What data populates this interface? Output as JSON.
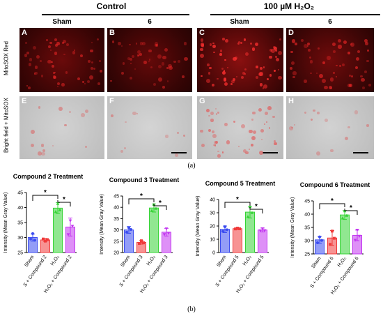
{
  "groups": {
    "control": "Control",
    "h2o2": "100 µM H₂O₂"
  },
  "columns": [
    "Sham",
    "6",
    "Sham",
    "6"
  ],
  "rows": {
    "mitosox": "MitoSOX Red",
    "bright": "Bright field + MitoSOX"
  },
  "panel_letters": [
    "A",
    "B",
    "C",
    "D",
    "E",
    "F",
    "G",
    "H"
  ],
  "captions": {
    "a": "(a)",
    "b": "(b)"
  },
  "colors": {
    "blue": "#3b4cf0",
    "red": "#f03a3a",
    "green": "#36d436",
    "purple": "#c235f0"
  },
  "chart_data": [
    {
      "type": "bar",
      "title": "Compound 2 Treatment",
      "ylabel": "Intensity (Mean Gray Value)",
      "ylim": [
        25,
        45
      ],
      "yticks": [
        25,
        30,
        35,
        40,
        45
      ],
      "categories": [
        "Sham",
        "S + Compound 2",
        "H₂O₂",
        "H₂O₂ + Compound 2"
      ],
      "values": [
        30,
        29.2,
        39.8,
        33.5
      ],
      "errors": [
        1.2,
        0.5,
        1.8,
        3.0
      ],
      "points": [
        [
          29.5,
          31.3,
          29.1
        ],
        [
          29.5,
          28.8,
          29.3
        ],
        [
          38.6,
          41.3,
          39.2
        ],
        [
          31.0,
          35.6,
          33.8
        ]
      ],
      "significance": [
        "*",
        "*"
      ]
    },
    {
      "type": "bar",
      "title": "Compound 3 Treatment",
      "ylabel": "Intensity (Mean Gray Value)",
      "ylim": [
        20,
        45
      ],
      "yticks": [
        20,
        25,
        30,
        35,
        40,
        45
      ],
      "categories": [
        "Sham",
        "S + Compound 3",
        "H₂O₂",
        "H₂O₂ + Compound 3"
      ],
      "values": [
        30,
        24.5,
        39.7,
        29
      ],
      "errors": [
        1.5,
        0.8,
        1.8,
        1.7
      ],
      "points": [
        [
          29.0,
          31.0,
          30.2
        ],
        [
          24.0,
          25.2,
          24.3
        ],
        [
          38.5,
          41.2,
          39.5
        ],
        [
          28.0,
          30.5,
          28.6
        ]
      ],
      "significance": [
        "*",
        "*"
      ]
    },
    {
      "type": "bar",
      "title": "Compound 5 Treatment",
      "ylabel": "Intensity (Mean Gray Value)",
      "ylim": [
        0,
        40
      ],
      "yticks": [
        0,
        10,
        20,
        30,
        40
      ],
      "categories": [
        "Sham",
        "S + Compound 5",
        "H₂O₂",
        "H₂O₂ + Compound 5"
      ],
      "values": [
        17.5,
        18,
        30.5,
        17
      ],
      "errors": [
        2.5,
        0.7,
        4.5,
        1.5
      ],
      "points": [
        [
          16.0,
          19.5,
          17.2
        ],
        [
          17.8,
          18.4,
          17.9
        ],
        [
          27.0,
          34.5,
          30.0
        ],
        [
          16.5,
          18.0,
          16.6
        ]
      ],
      "significance": [
        "*",
        "*"
      ]
    },
    {
      "type": "bar",
      "title": "Compound 6 Treatment",
      "ylabel": "Intensity (Mean Gray Value)",
      "ylim": [
        25,
        45
      ],
      "yticks": [
        25,
        30,
        35,
        40,
        45
      ],
      "categories": [
        "Sham",
        "S + Compound 6",
        "H₂O₂",
        "H₂O₂ + Compound 6"
      ],
      "values": [
        30.3,
        31,
        39.7,
        32
      ],
      "errors": [
        1.3,
        2.8,
        1.7,
        2.0
      ],
      "points": [
        [
          29.2,
          31.4,
          30.1
        ],
        [
          28.6,
          33.6,
          30.9
        ],
        [
          38.5,
          41.2,
          39.5
        ],
        [
          30.2,
          34.0,
          31.7
        ]
      ],
      "significance": [
        "*",
        "*"
      ]
    }
  ]
}
